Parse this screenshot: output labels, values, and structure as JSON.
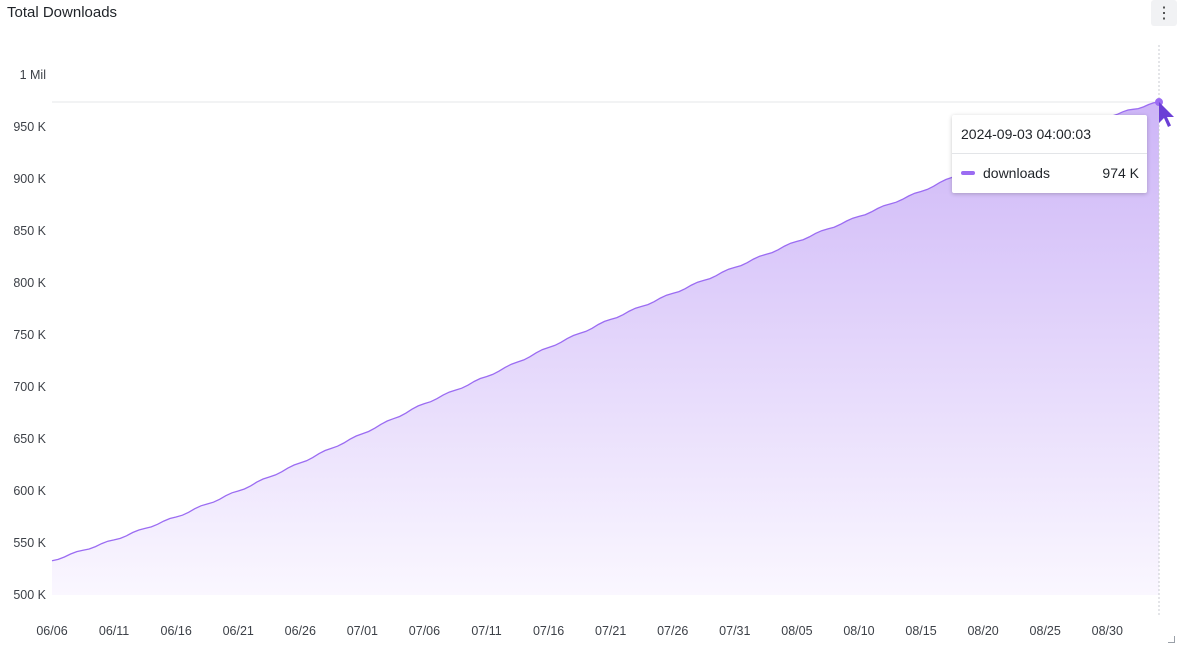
{
  "panel": {
    "title": "Total Downloads",
    "menu_icon": "more-vertical-icon"
  },
  "colors": {
    "series": "#9b6cf2",
    "fill_top": "#cdb5f7",
    "fill_bottom": "#faf7ff",
    "grid": "#e6e7ea",
    "cursor": "#6b3fd6"
  },
  "tooltip": {
    "time": "2024-09-03 04:00:03",
    "series_name": "downloads",
    "value": "974 K"
  },
  "chart_data": {
    "type": "area",
    "title": "Total Downloads",
    "xlabel": "",
    "ylabel": "",
    "ylim": [
      500000,
      1000000
    ],
    "yticks": [
      {
        "value": 1000000,
        "label": "1 Mil"
      },
      {
        "value": 950000,
        "label": "950 K"
      },
      {
        "value": 900000,
        "label": "900 K"
      },
      {
        "value": 850000,
        "label": "850 K"
      },
      {
        "value": 800000,
        "label": "800 K"
      },
      {
        "value": 750000,
        "label": "750 K"
      },
      {
        "value": 700000,
        "label": "700 K"
      },
      {
        "value": 650000,
        "label": "650 K"
      },
      {
        "value": 600000,
        "label": "600 K"
      },
      {
        "value": 550000,
        "label": "550 K"
      },
      {
        "value": 500000,
        "label": "500 K"
      }
    ],
    "xlim": [
      "2024-06-06",
      "2024-09-03T04:00:03"
    ],
    "xticks": [
      {
        "date": "2024-06-06",
        "label": "06/06"
      },
      {
        "date": "2024-06-11",
        "label": "06/11"
      },
      {
        "date": "2024-06-16",
        "label": "06/16"
      },
      {
        "date": "2024-06-21",
        "label": "06/21"
      },
      {
        "date": "2024-06-26",
        "label": "06/26"
      },
      {
        "date": "2024-07-01",
        "label": "07/01"
      },
      {
        "date": "2024-07-06",
        "label": "07/06"
      },
      {
        "date": "2024-07-11",
        "label": "07/11"
      },
      {
        "date": "2024-07-16",
        "label": "07/16"
      },
      {
        "date": "2024-07-21",
        "label": "07/21"
      },
      {
        "date": "2024-07-26",
        "label": "07/26"
      },
      {
        "date": "2024-07-31",
        "label": "07/31"
      },
      {
        "date": "2024-08-05",
        "label": "08/05"
      },
      {
        "date": "2024-08-10",
        "label": "08/10"
      },
      {
        "date": "2024-08-15",
        "label": "08/15"
      },
      {
        "date": "2024-08-20",
        "label": "08/20"
      },
      {
        "date": "2024-08-25",
        "label": "08/25"
      },
      {
        "date": "2024-08-30",
        "label": "08/30"
      }
    ],
    "grid": false,
    "legend": "none",
    "series": [
      {
        "name": "downloads",
        "points": [
          {
            "x": "2024-06-06",
            "y": 533000
          },
          {
            "x": "2024-06-11",
            "y": 553000
          },
          {
            "x": "2024-06-16",
            "y": 575000
          },
          {
            "x": "2024-06-21",
            "y": 600000
          },
          {
            "x": "2024-06-26",
            "y": 627000
          },
          {
            "x": "2024-07-01",
            "y": 655000
          },
          {
            "x": "2024-07-06",
            "y": 684000
          },
          {
            "x": "2024-07-11",
            "y": 710000
          },
          {
            "x": "2024-07-16",
            "y": 738000
          },
          {
            "x": "2024-07-21",
            "y": 765000
          },
          {
            "x": "2024-07-26",
            "y": 790000
          },
          {
            "x": "2024-07-31",
            "y": 815000
          },
          {
            "x": "2024-08-05",
            "y": 840000
          },
          {
            "x": "2024-08-10",
            "y": 864000
          },
          {
            "x": "2024-08-15",
            "y": 888000
          },
          {
            "x": "2024-08-20",
            "y": 915000
          },
          {
            "x": "2024-08-25",
            "y": 940000
          },
          {
            "x": "2024-08-30",
            "y": 960000
          },
          {
            "x": "2024-09-03T04:00:03",
            "y": 974000
          }
        ]
      }
    ],
    "hover": {
      "x": "2024-09-03T04:00:03",
      "y": 974000
    }
  }
}
